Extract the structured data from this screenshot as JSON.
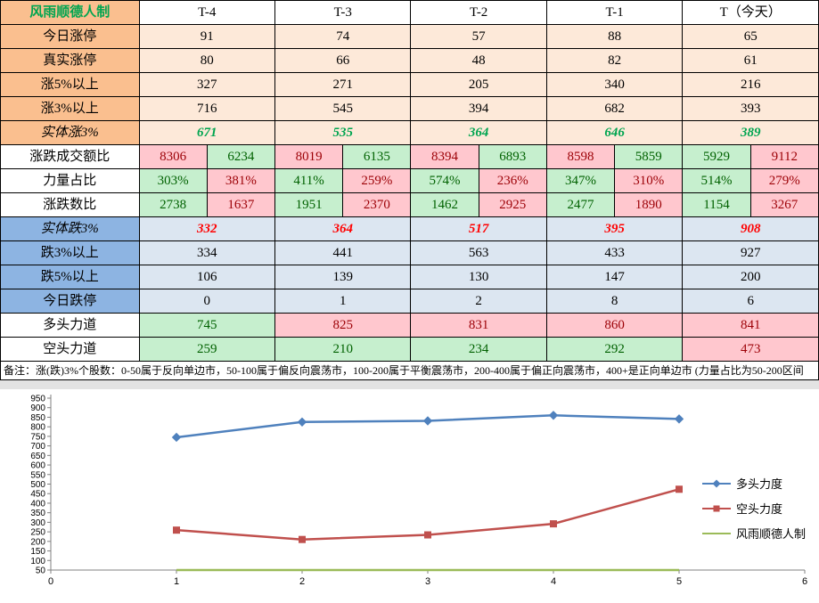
{
  "palette": {
    "orange": "#FABF8F",
    "peach": "#FDE9D9",
    "blue": "#8DB4E2",
    "lightblue": "#DCE6F1",
    "pink": "#FFC7CE",
    "green": "#C6EFCE",
    "pinktext": "#9C0006",
    "greentext": "#006100",
    "upgreen": "#00A550",
    "downred": "#FF0000"
  },
  "table": {
    "header": {
      "label": "风雨顺德人制",
      "columns": [
        "T-4",
        "T-3",
        "T-2",
        "T-1",
        "T（今天）"
      ]
    },
    "rows": [
      {
        "label": "今日涨停",
        "section": "up",
        "values": [
          "91",
          "74",
          "57",
          "88",
          "65"
        ]
      },
      {
        "label": "真实涨停",
        "section": "up",
        "values": [
          "80",
          "66",
          "48",
          "82",
          "61"
        ]
      },
      {
        "label": "涨5%以上",
        "section": "up",
        "values": [
          "327",
          "271",
          "205",
          "340",
          "216"
        ]
      },
      {
        "label": "涨3%以上",
        "section": "up",
        "values": [
          "716",
          "545",
          "394",
          "682",
          "393"
        ]
      },
      {
        "label": "实体涨3%",
        "section": "up-strong",
        "values": [
          "671",
          "535",
          "364",
          "646",
          "389"
        ]
      },
      {
        "label": "涨跌成交额比",
        "section": "pair",
        "pairs": [
          [
            "8306",
            "6234"
          ],
          [
            "8019",
            "6135"
          ],
          [
            "8394",
            "6893"
          ],
          [
            "8598",
            "5859"
          ],
          [
            "5929",
            "9112"
          ]
        ],
        "colors": [
          [
            "pink",
            "green"
          ],
          [
            "pink",
            "green"
          ],
          [
            "pink",
            "green"
          ],
          [
            "pink",
            "green"
          ],
          [
            "green",
            "pink"
          ]
        ]
      },
      {
        "label": "力量占比",
        "section": "pair",
        "pairs": [
          [
            "303%",
            "381%"
          ],
          [
            "411%",
            "259%"
          ],
          [
            "574%",
            "236%"
          ],
          [
            "347%",
            "310%"
          ],
          [
            "514%",
            "279%"
          ]
        ],
        "colors": [
          [
            "green",
            "pink"
          ],
          [
            "green",
            "pink"
          ],
          [
            "green",
            "pink"
          ],
          [
            "green",
            "pink"
          ],
          [
            "green",
            "pink"
          ]
        ]
      },
      {
        "label": "涨跌数比",
        "section": "pair",
        "pairs": [
          [
            "2738",
            "1637"
          ],
          [
            "1951",
            "2370"
          ],
          [
            "1462",
            "2925"
          ],
          [
            "2477",
            "1890"
          ],
          [
            "1154",
            "3267"
          ]
        ],
        "colors": [
          [
            "green",
            "pink"
          ],
          [
            "green",
            "pink"
          ],
          [
            "green",
            "pink"
          ],
          [
            "green",
            "pink"
          ],
          [
            "green",
            "pink"
          ]
        ]
      },
      {
        "label": "实体跌3%",
        "section": "down-strong",
        "values": [
          "332",
          "364",
          "517",
          "395",
          "908"
        ]
      },
      {
        "label": "跌3%以上",
        "section": "down",
        "values": [
          "334",
          "441",
          "563",
          "433",
          "927"
        ]
      },
      {
        "label": "跌5%以上",
        "section": "down",
        "values": [
          "106",
          "139",
          "130",
          "147",
          "200"
        ]
      },
      {
        "label": "今日跌停",
        "section": "down",
        "values": [
          "0",
          "1",
          "2",
          "8",
          "6"
        ]
      },
      {
        "label": "多头力道",
        "section": "force",
        "values": [
          "745",
          "825",
          "831",
          "860",
          "841"
        ],
        "colors": [
          "green",
          "pink",
          "pink",
          "pink",
          "pink"
        ]
      },
      {
        "label": "空头力道",
        "section": "force",
        "values": [
          "259",
          "210",
          "234",
          "292",
          "473"
        ],
        "colors": [
          "green",
          "green",
          "green",
          "green",
          "pink"
        ]
      }
    ],
    "note": "备注：涨(跌)3%个股数：0-50属于反向单边市，50-100属于偏反向震荡市，100-200属于平衡震荡市，200-400属于偏正向震荡市，400+是正向单边市 (力量占比为50-200区间"
  },
  "chart_data": {
    "type": "line",
    "title": "",
    "x": [
      1,
      2,
      3,
      4,
      5
    ],
    "series": [
      {
        "name": "多头力度",
        "values": [
          745,
          825,
          831,
          860,
          841
        ],
        "color": "#4F81BD",
        "marker": "diamond"
      },
      {
        "name": "空头力度",
        "values": [
          259,
          210,
          234,
          292,
          473
        ],
        "color": "#C0504D",
        "marker": "square"
      },
      {
        "name": "风雨顺德人制",
        "values": [
          50,
          50,
          50,
          50,
          50
        ],
        "color": "#9BBB59",
        "marker": "none"
      }
    ],
    "xlim": [
      0,
      6
    ],
    "ylim": [
      50,
      950
    ],
    "ytick_step": 50,
    "xticks": [
      0,
      1,
      2,
      3,
      4,
      5,
      6
    ],
    "legend_position": "right",
    "grid": false
  }
}
